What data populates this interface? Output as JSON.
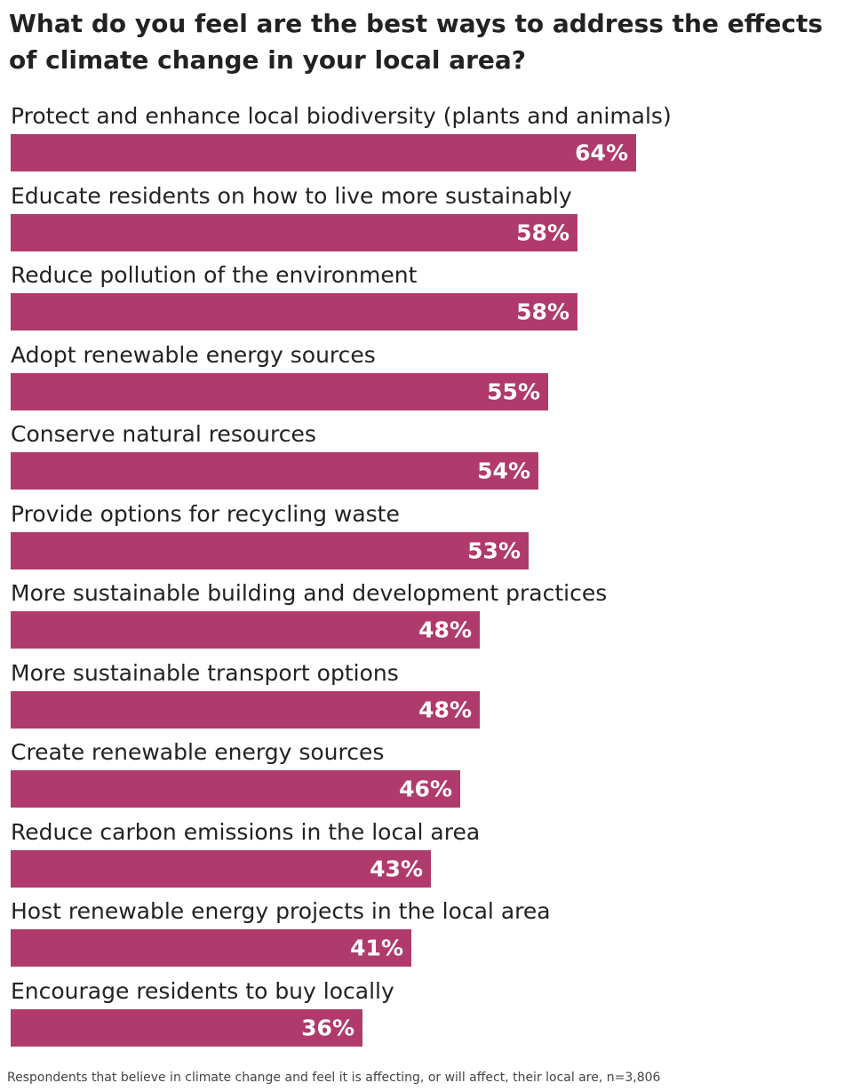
{
  "title": "What do you feel are the best ways to address the effects of climate change in your local area?",
  "footnote": "Respondents that believe in climate change and feel it is affecting, or will affect, their local are, n=3,806",
  "colors": {
    "bar": "#b03a6c",
    "value_text": "#ffffff",
    "text": "#222222"
  },
  "chart_data": {
    "type": "bar",
    "orientation": "horizontal",
    "categories": [
      "Protect and enhance local biodiversity (plants and animals)",
      "Educate residents on how to live more sustainably",
      "Reduce pollution of the environment",
      "Adopt renewable energy sources",
      "Conserve natural resources",
      "Provide options for recycling waste",
      "More sustainable building and development practices",
      "More sustainable transport options",
      "Create renewable energy sources",
      "Reduce carbon emissions in the local area",
      "Host renewable energy projects in the local area",
      "Encourage residents to buy locally"
    ],
    "values": [
      64,
      58,
      58,
      55,
      54,
      53,
      48,
      48,
      46,
      43,
      41,
      36
    ],
    "value_labels": [
      "64%",
      "58%",
      "58%",
      "55%",
      "54%",
      "53%",
      "48%",
      "48%",
      "46%",
      "43%",
      "41%",
      "36%"
    ],
    "title": "What do you feel are the best ways to address the effects of climate change in your local area?",
    "xlabel": "",
    "ylabel": "",
    "grid": false,
    "legend": "none"
  }
}
